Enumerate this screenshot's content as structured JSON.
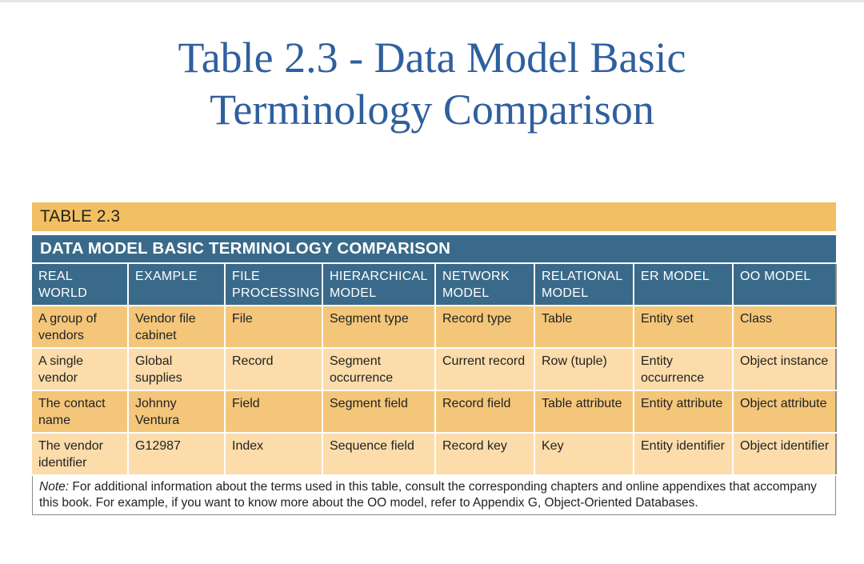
{
  "slide": {
    "title_line1": "Table 2.3 - Data Model Basic",
    "title_line2": "Terminology Comparison"
  },
  "table": {
    "tag": "TABLE 2.3",
    "heading": "DATA MODEL BASIC TERMINOLOGY COMPARISON",
    "columns": [
      "REAL WORLD",
      "EXAMPLE",
      "FILE PROCESSING",
      "HIERARCHICAL MODEL",
      "NETWORK MODEL",
      "RELATIONAL MODEL",
      "ER MODEL",
      "OO MODEL"
    ],
    "rows": [
      [
        "A group of vendors",
        "Vendor file cabinet",
        "File",
        "Segment type",
        "Record type",
        "Table",
        "Entity set",
        "Class"
      ],
      [
        "A single vendor",
        "Global supplies",
        "Record",
        "Segment occurrence",
        "Current record",
        "Row (tuple)",
        "Entity occurrence",
        "Object instance"
      ],
      [
        "The contact name",
        "Johnny Ventura",
        "Field",
        "Segment field",
        "Record field",
        "Table attribute",
        "Entity attribute",
        "Object attribute"
      ],
      [
        "The vendor identifier",
        "G12987",
        "Index",
        "Sequence field",
        "Record key",
        "Key",
        "Entity identifier",
        "Object identifier"
      ]
    ],
    "note_label": "Note:",
    "note_text": " For additional information about the terms used in this table, consult the corresponding chapters and online appendixes that accompany this book. For example, if you want to know more about the OO model, refer to Appendix G, Object-Oriented Databases."
  },
  "colors": {
    "title": "#2f5f9e",
    "tag_bar": "#f2bf62",
    "heading_bar": "#3a6a8a",
    "row_dark": "#f4c67a",
    "row_light": "#fbdcaa"
  }
}
